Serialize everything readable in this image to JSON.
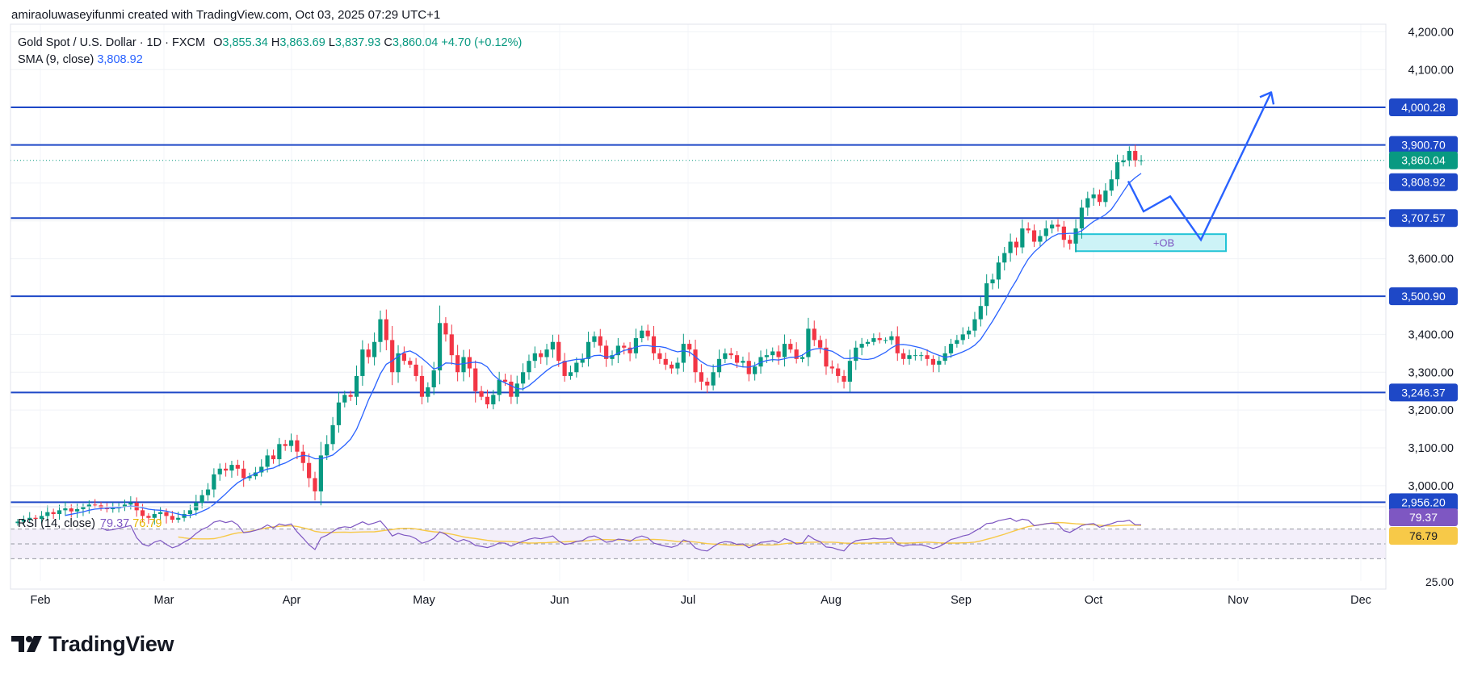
{
  "header": {
    "attribution": "amiraoluwaseyifunmi created with TradingView.com, Oct 03, 2025 07:29 UTC+1"
  },
  "legend": {
    "symbol": "Gold Spot / U.S. Dollar · 1D · FXCM",
    "o_label": "O",
    "o_value": "3,855.34",
    "h_label": "H",
    "h_value": "3,863.69",
    "l_label": "L",
    "l_value": "3,837.93",
    "c_label": "C",
    "c_value": "3,860.04",
    "change": "+4.70 (+0.12%)",
    "sma_label": "SMA (9, close)",
    "sma_value": "3,808.92"
  },
  "rsi_legend": {
    "label": "RSI (14, close)",
    "rsi_value": "79.37",
    "ma_value": "76.79"
  },
  "brand": {
    "name": "TradingView"
  },
  "colors": {
    "up": "#089981",
    "down": "#f23645",
    "levels": "#1e48c7",
    "sma": "#2962ff",
    "rsi": "#7e57c2",
    "rsi_ma": "#f7c948",
    "ob_fill": "#cdf3f7",
    "ob_border": "#22c4d6",
    "ob_text": "#7e57c2",
    "projection": "#2962ff",
    "price_tag": "#089981"
  },
  "chart_data": [
    {
      "type": "candlestick",
      "title": "Gold Spot / U.S. Dollar · 1D · FXCM",
      "x_axis": {
        "ticks": [
          "Feb",
          "Mar",
          "Apr",
          "May",
          "Jun",
          "Jul",
          "Aug",
          "Sep",
          "Oct",
          "Nov",
          "Dec"
        ]
      },
      "y_axis": {
        "range": [
          2940,
          4220
        ],
        "ticks": [
          3000,
          3100,
          3200,
          3300,
          3400,
          3500,
          3600,
          3700,
          3800,
          3900,
          4000,
          4100,
          4200
        ],
        "tick_labels": [
          "3,000.00",
          "3,100.00",
          "3,200.00",
          "3,300.00",
          "3,400.00",
          "3,500.00",
          "3,600.00",
          "3,700.00",
          "3,800.00",
          "3,900.00",
          "4,000.00",
          "4,100.00",
          "4,200.00"
        ],
        "position": "right"
      },
      "horizontal_levels": [
        {
          "value": 4000.28,
          "label": "4,000.28"
        },
        {
          "value": 3900.7,
          "label": "3,900.70"
        },
        {
          "value": 3707.57,
          "label": "3,707.57"
        },
        {
          "value": 3500.9,
          "label": "3,500.90"
        },
        {
          "value": 3246.37,
          "label": "3,246.37"
        },
        {
          "value": 2956.2,
          "label": "2,956.20"
        }
      ],
      "price_tags": [
        {
          "value": 3860.04,
          "label": "3,860.04",
          "kind": "last_price"
        },
        {
          "value": 3808.92,
          "label": "3,808.92",
          "kind": "sma"
        }
      ],
      "closes": [
        2905,
        2910,
        2915,
        2912,
        2920,
        2930,
        2925,
        2935,
        2940,
        2932,
        2938,
        2945,
        2950,
        2948,
        2942,
        2938,
        2940,
        2945,
        2950,
        2955,
        2935,
        2920,
        2915,
        2925,
        2930,
        2920,
        2910,
        2915,
        2925,
        2935,
        2955,
        2975,
        2990,
        3030,
        3045,
        3040,
        3055,
        3045,
        3020,
        3025,
        3035,
        3050,
        3080,
        3070,
        3110,
        3105,
        3120,
        3090,
        3060,
        3020,
        2985,
        3080,
        3110,
        3160,
        3220,
        3240,
        3235,
        3290,
        3360,
        3340,
        3380,
        3440,
        3385,
        3300,
        3350,
        3330,
        3320,
        3290,
        3235,
        3260,
        3305,
        3430,
        3400,
        3345,
        3300,
        3340,
        3310,
        3250,
        3235,
        3215,
        3240,
        3280,
        3275,
        3235,
        3270,
        3300,
        3330,
        3350,
        3340,
        3360,
        3380,
        3330,
        3290,
        3300,
        3325,
        3335,
        3380,
        3395,
        3370,
        3335,
        3345,
        3370,
        3365,
        3350,
        3390,
        3410,
        3395,
        3350,
        3335,
        3320,
        3310,
        3325,
        3375,
        3360,
        3300,
        3275,
        3265,
        3300,
        3335,
        3350,
        3345,
        3325,
        3330,
        3295,
        3315,
        3340,
        3345,
        3355,
        3340,
        3375,
        3360,
        3335,
        3340,
        3415,
        3385,
        3365,
        3315,
        3310,
        3290,
        3275,
        3330,
        3365,
        3375,
        3380,
        3390,
        3385,
        3385,
        3395,
        3350,
        3335,
        3345,
        3345,
        3345,
        3335,
        3320,
        3330,
        3350,
        3375,
        3385,
        3400,
        3410,
        3440,
        3475,
        3535,
        3545,
        3590,
        3615,
        3645,
        3630,
        3680,
        3675,
        3645,
        3660,
        3680,
        3690,
        3685,
        3650,
        3640,
        3680,
        3735,
        3760,
        3770,
        3750,
        3780,
        3810,
        3855,
        3860,
        3885,
        3860,
        3860
      ]
    },
    {
      "type": "line",
      "title": "RSI (14, close)",
      "series": [
        {
          "name": "RSI",
          "last": 79.37
        },
        {
          "name": "RSI-based MA",
          "last": 76.79
        }
      ],
      "band": [
        30,
        70
      ],
      "visible_tick": "25.00",
      "price_tags": [
        {
          "value": 79.37,
          "label": "79.37"
        },
        {
          "value": 76.79,
          "label": "76.79"
        }
      ]
    }
  ],
  "annotations": {
    "order_block": {
      "label": "+OB",
      "from": 3620,
      "to": 3665
    },
    "projection_path": [
      3805,
      3725,
      3765,
      3650,
      4040
    ]
  }
}
